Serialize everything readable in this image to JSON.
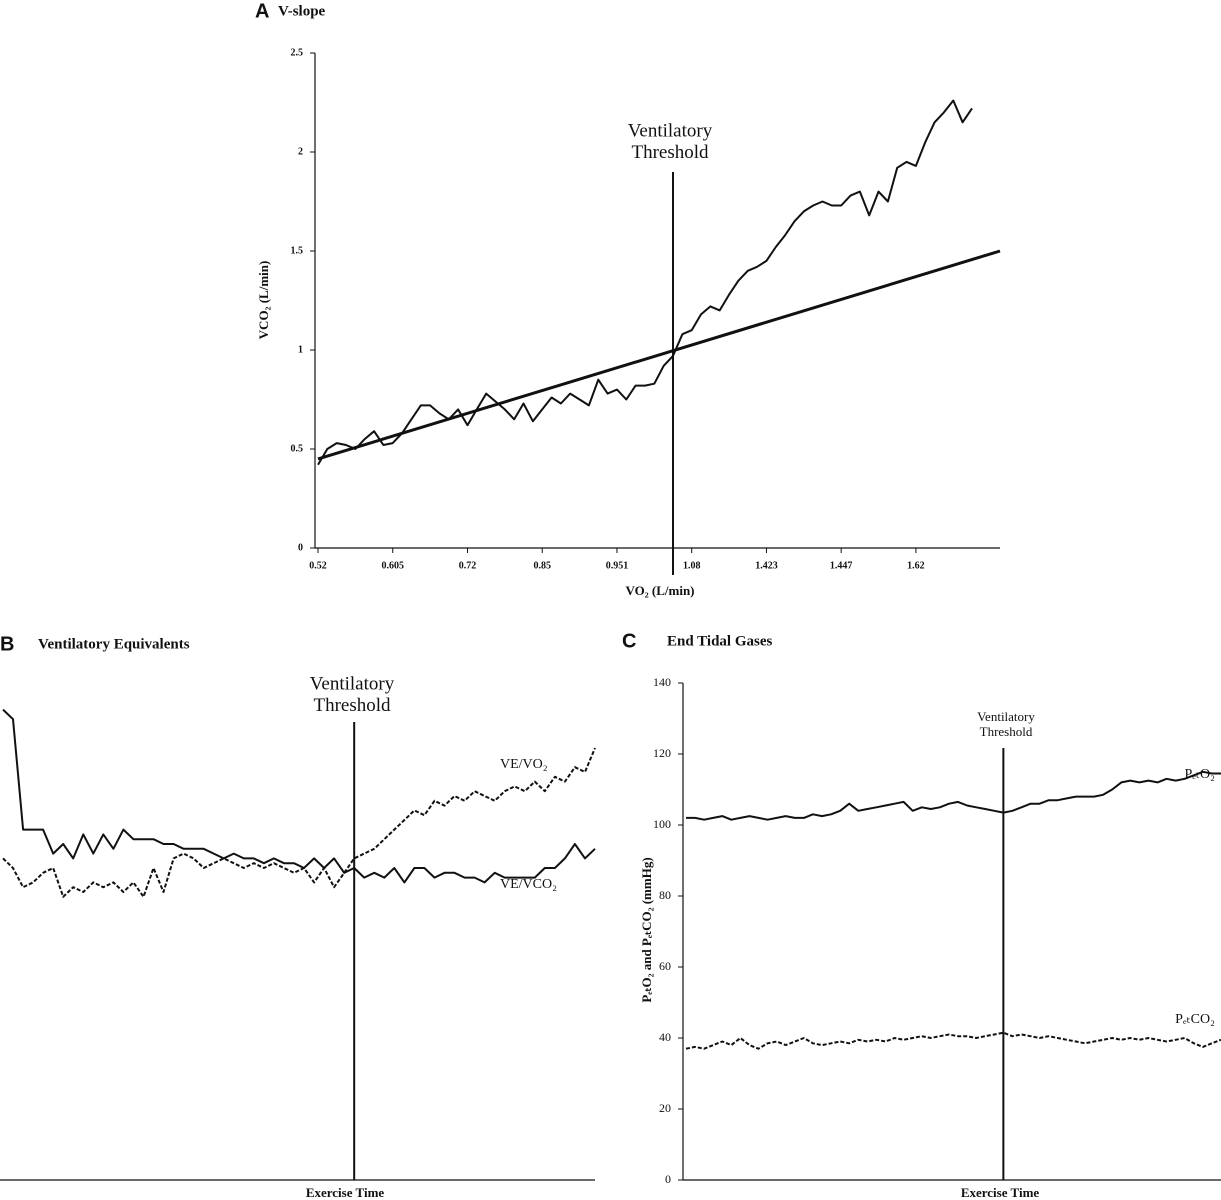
{
  "chart_data": [
    {
      "type": "line",
      "panel": "A",
      "title": "V-slope",
      "xlabel": "VO₂ (L/min)",
      "ylabel": "VCO₂ (L/min)",
      "categories": [
        "0.52",
        null,
        null,
        null,
        null,
        null,
        null,
        null,
        "0.605",
        null,
        null,
        null,
        null,
        null,
        null,
        null,
        "0.72",
        null,
        null,
        null,
        null,
        null,
        null,
        null,
        "0.85",
        null,
        null,
        null,
        null,
        null,
        null,
        null,
        "0.951",
        null,
        null,
        null,
        null,
        null,
        null,
        null,
        "1.08",
        null,
        null,
        null,
        null,
        null,
        null,
        null,
        "1.423",
        null,
        null,
        null,
        null,
        null,
        null,
        null,
        "1.447",
        null,
        null,
        null,
        null,
        null,
        null,
        null,
        "1.62",
        null,
        null,
        null,
        null,
        null,
        null,
        null,
        null,
        null
      ],
      "ylim": [
        0,
        2.5
      ],
      "yticks": [
        0,
        0.5,
        1,
        1.5,
        2,
        2.5
      ],
      "series": [
        {
          "name": "VCO₂",
          "color": "#111111",
          "dash": false,
          "values": [
            0.42,
            0.5,
            0.53,
            0.52,
            0.5,
            0.55,
            0.59,
            0.52,
            0.53,
            0.58,
            0.65,
            0.72,
            0.72,
            0.68,
            0.65,
            0.7,
            0.62,
            0.7,
            0.78,
            0.74,
            0.7,
            0.65,
            0.73,
            0.64,
            0.7,
            0.76,
            0.73,
            0.78,
            0.75,
            0.72,
            0.85,
            0.78,
            0.8,
            0.75,
            0.82,
            0.82,
            0.83,
            0.92,
            0.97,
            1.08,
            1.1,
            1.18,
            1.22,
            1.2,
            1.28,
            1.35,
            1.4,
            1.42,
            1.45,
            1.52,
            1.58,
            1.65,
            1.7,
            1.73,
            1.75,
            1.73,
            1.73,
            1.78,
            1.8,
            1.68,
            1.8,
            1.75,
            1.92,
            1.95,
            1.93,
            2.05,
            2.15,
            2.2,
            2.26,
            2.15,
            2.22,
            null,
            null,
            null
          ]
        }
      ],
      "reference_line": {
        "from": 0.45,
        "to": 1.5
      },
      "threshold_index": 38,
      "threshold_label": [
        "Ventilatory",
        "Threshold"
      ]
    },
    {
      "type": "line",
      "panel": "B",
      "title": "Ventilatory Equivalents",
      "xlabel": "Exercise Time",
      "ylim": [
        0,
        100
      ],
      "series": [
        {
          "name": "VE/VCO₂",
          "color": "#111111",
          "dash": false,
          "values": [
            98,
            96,
            73,
            73,
            73,
            68,
            70,
            67,
            72,
            68,
            72,
            69,
            73,
            71,
            71,
            71,
            70,
            70,
            69,
            69,
            69,
            68,
            67,
            68,
            67,
            67,
            66,
            67,
            66,
            66,
            65,
            67,
            65,
            67,
            64,
            65,
            63,
            64,
            63,
            65,
            62,
            65,
            65,
            63,
            64,
            64,
            63,
            63,
            62,
            64,
            63,
            63,
            63,
            63,
            65,
            65,
            67,
            70,
            67,
            69
          ]
        },
        {
          "name": "VE/VO₂",
          "color": "#111111",
          "dash": true,
          "values": [
            67,
            65,
            61,
            62,
            64,
            65,
            59,
            61,
            60,
            62,
            61,
            62,
            60,
            62,
            59,
            65,
            60,
            67,
            68,
            67,
            65,
            66,
            67,
            66,
            65,
            66,
            65,
            66,
            65,
            64,
            65,
            62,
            65,
            61,
            64,
            67,
            68,
            69,
            71,
            73,
            75,
            77,
            76,
            79,
            78,
            80,
            79,
            81,
            80,
            79,
            81,
            82,
            81,
            83,
            81,
            84,
            83,
            86,
            85,
            90
          ]
        }
      ],
      "threshold_index": 35,
      "threshold_label": [
        "Ventilatory",
        "Threshold"
      ]
    },
    {
      "type": "line",
      "panel": "C",
      "title": "End Tidal Gases",
      "xlabel": "Exercise Time",
      "ylabel": "PₑₜO₂ and PₑₜCO₂ (mmHg)",
      "ylim": [
        0,
        140
      ],
      "yticks": [
        0,
        20,
        40,
        60,
        80,
        100,
        120,
        140
      ],
      "series": [
        {
          "name": "PₑₜO₂",
          "color": "#111111",
          "dash": false,
          "values": [
            102,
            102,
            101.5,
            102,
            102.5,
            101.5,
            102,
            102.5,
            102,
            101.5,
            102,
            102.5,
            102,
            102,
            103,
            102.5,
            103,
            104,
            106,
            104,
            104.5,
            105,
            105.5,
            106,
            106.5,
            104,
            105,
            104.5,
            105,
            106,
            106.5,
            105.5,
            105,
            104.5,
            104,
            103.5,
            104,
            105,
            106,
            106,
            107,
            107,
            107.5,
            108,
            108,
            108,
            108.5,
            110,
            112,
            112.5,
            112,
            112.5,
            112,
            113,
            112.5,
            113,
            114,
            115,
            114.5,
            114.5
          ]
        },
        {
          "name": "PₑₜCO₂",
          "color": "#111111",
          "dash": true,
          "values": [
            37,
            37.5,
            37,
            38,
            39,
            38,
            40,
            38,
            37,
            38.5,
            39,
            38,
            39,
            40,
            38.5,
            38,
            38.5,
            39,
            38.5,
            39.5,
            39,
            39.5,
            39,
            40,
            39.5,
            40,
            40.5,
            40,
            40.5,
            41,
            40.5,
            40.5,
            40,
            40.5,
            41,
            41.5,
            40.5,
            41,
            40.5,
            40,
            40.5,
            40,
            39.5,
            39,
            38.5,
            39,
            39.5,
            40,
            39.5,
            40,
            39.5,
            40,
            39.5,
            39,
            39.5,
            40,
            38.5,
            37.5,
            38.5,
            39.5
          ]
        }
      ],
      "threshold_index": 35,
      "threshold_label": [
        "Ventilatory",
        "Threshold"
      ]
    }
  ]
}
